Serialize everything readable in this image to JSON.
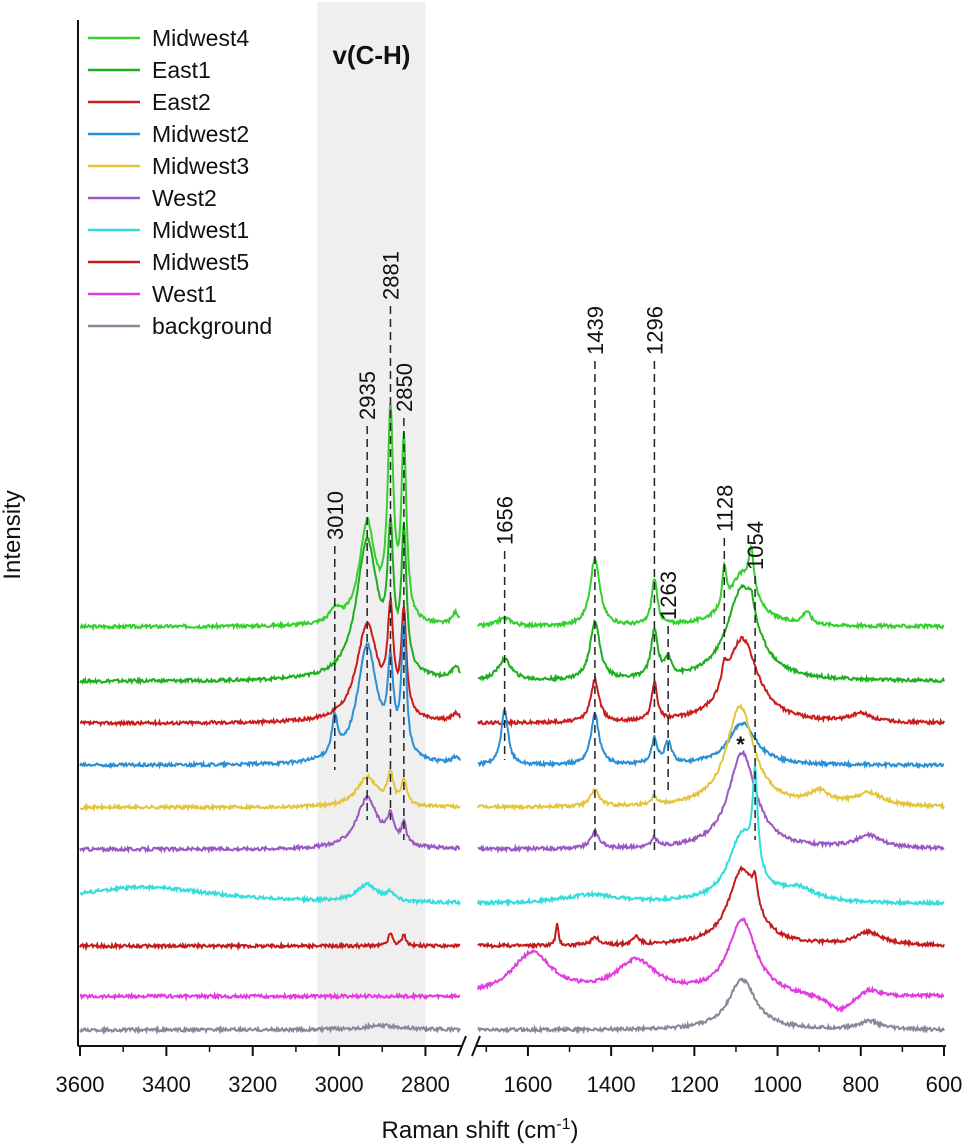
{
  "chart_data": {
    "type": "line",
    "ylabel": "Intensity",
    "xlabel_main": "Raman shift (cm",
    "xlabel_sup": "-1",
    "xlabel_close": ")",
    "band_label": "v(C-H)",
    "band_range": [
      3050,
      2800
    ],
    "broken_axis": {
      "left_range": [
        3600,
        2720
      ],
      "right_range": [
        1720,
        600
      ]
    },
    "ticks_left": [
      3600,
      3400,
      3200,
      3000,
      2800
    ],
    "ticks_right": [
      1600,
      1400,
      1200,
      1000,
      800,
      600
    ],
    "peak_labels": [
      {
        "text": "3010",
        "x": 3010
      },
      {
        "text": "2935",
        "x": 2935
      },
      {
        "text": "2881",
        "x": 2881
      },
      {
        "text": "2850",
        "x": 2850
      },
      {
        "text": "1656",
        "x": 1656
      },
      {
        "text": "1439",
        "x": 1439
      },
      {
        "text": "1296",
        "x": 1296
      },
      {
        "text": "1263",
        "x": 1263
      },
      {
        "text": "1128",
        "x": 1128
      },
      {
        "text": "1054",
        "x": 1054
      }
    ],
    "star_marker": {
      "text": "*",
      "x": 1085
    },
    "series": [
      {
        "name": "Midwest4",
        "color": "#35d02e",
        "offset": 9.6,
        "peaks": [
          [
            3010,
            0.3,
            14
          ],
          [
            2935,
            2.4,
            22
          ],
          [
            2881,
            4.8,
            8
          ],
          [
            2850,
            4.2,
            7
          ],
          [
            2730,
            0.3,
            10
          ],
          [
            1656,
            0.2,
            20
          ],
          [
            1439,
            1.6,
            14
          ],
          [
            1296,
            1.1,
            8
          ],
          [
            1128,
            0.9,
            6
          ],
          [
            1085,
            1.2,
            40
          ],
          [
            1063,
            1.0,
            7
          ],
          [
            930,
            0.3,
            12
          ]
        ]
      },
      {
        "name": "East1",
        "color": "#1fae1f",
        "offset": 8.3,
        "peaks": [
          [
            2935,
            3.3,
            30
          ],
          [
            2881,
            3.0,
            8
          ],
          [
            2850,
            3.2,
            7
          ],
          [
            2730,
            0.3,
            10
          ],
          [
            1656,
            0.5,
            20
          ],
          [
            1439,
            1.4,
            14
          ],
          [
            1296,
            1.1,
            10
          ],
          [
            1263,
            0.4,
            10
          ],
          [
            1085,
            2.2,
            45
          ],
          [
            1063,
            0.4,
            8
          ]
        ]
      },
      {
        "name": "East2",
        "color": "#c81e1e",
        "offset": 7.3,
        "peaks": [
          [
            2935,
            2.3,
            30
          ],
          [
            2881,
            2.3,
            8
          ],
          [
            2850,
            2.4,
            7
          ],
          [
            2730,
            0.2,
            10
          ],
          [
            1439,
            1.0,
            12
          ],
          [
            1296,
            0.9,
            8
          ],
          [
            1128,
            0.5,
            8
          ],
          [
            1085,
            2.0,
            45
          ],
          [
            800,
            0.2,
            30
          ]
        ]
      },
      {
        "name": "Midwest2",
        "color": "#2a8fd4",
        "offset": 6.3,
        "peaks": [
          [
            3010,
            0.9,
            8
          ],
          [
            2935,
            2.8,
            28
          ],
          [
            2881,
            2.0,
            8
          ],
          [
            2850,
            3.0,
            7
          ],
          [
            2730,
            0.15,
            10
          ],
          [
            1656,
            1.3,
            10
          ],
          [
            1439,
            1.2,
            12
          ],
          [
            1296,
            0.6,
            8
          ],
          [
            1263,
            0.5,
            10
          ],
          [
            1085,
            1.0,
            40
          ]
        ]
      },
      {
        "name": "Midwest3",
        "color": "#e3c53d",
        "offset": 5.3,
        "peaks": [
          [
            2935,
            0.7,
            30
          ],
          [
            2881,
            0.7,
            8
          ],
          [
            2850,
            0.6,
            7
          ],
          [
            1439,
            0.4,
            12
          ],
          [
            1296,
            0.2,
            8
          ],
          [
            1090,
            2.4,
            40
          ],
          [
            900,
            0.3,
            30
          ],
          [
            780,
            0.3,
            40
          ]
        ]
      },
      {
        "name": "West2",
        "color": "#9a58c2",
        "offset": 4.3,
        "peaks": [
          [
            2935,
            1.2,
            30
          ],
          [
            2881,
            0.6,
            10
          ],
          [
            2850,
            0.5,
            7
          ],
          [
            1439,
            0.4,
            12
          ],
          [
            1296,
            0.2,
            8
          ],
          [
            1085,
            2.3,
            40
          ],
          [
            780,
            0.3,
            40
          ]
        ]
      },
      {
        "name": "Midwest1",
        "color": "#35dcdc",
        "offset": 3.0,
        "peaks": [
          [
            3450,
            0.4,
            200
          ],
          [
            2935,
            0.4,
            30
          ],
          [
            2881,
            0.2,
            10
          ],
          [
            1450,
            0.2,
            80
          ],
          [
            1085,
            1.6,
            40
          ],
          [
            1054,
            2.2,
            7
          ],
          [
            950,
            0.3,
            50
          ]
        ]
      },
      {
        "name": "Midwest5",
        "color": "#c41c1c",
        "offset": 2.0,
        "peaks": [
          [
            2881,
            0.3,
            6
          ],
          [
            2850,
            0.25,
            6
          ],
          [
            1530,
            0.5,
            4
          ],
          [
            1439,
            0.2,
            10
          ],
          [
            1340,
            0.2,
            10
          ],
          [
            1085,
            1.8,
            40
          ],
          [
            1054,
            0.6,
            8
          ],
          [
            780,
            0.3,
            40
          ]
        ]
      },
      {
        "name": "West1",
        "color": "#e23be0",
        "offset": 0.8,
        "peaks": [
          [
            1590,
            1.0,
            60
          ],
          [
            1340,
            0.8,
            60
          ],
          [
            1085,
            1.8,
            40
          ],
          [
            850,
            -0.4,
            40
          ],
          [
            780,
            0.2,
            30
          ]
        ]
      },
      {
        "name": "background",
        "color": "#888899",
        "offset": 0.0,
        "peaks": [
          [
            2900,
            0.1,
            60
          ],
          [
            1085,
            1.2,
            40
          ],
          [
            780,
            0.2,
            30
          ]
        ]
      }
    ],
    "legend_position": "top-left"
  }
}
